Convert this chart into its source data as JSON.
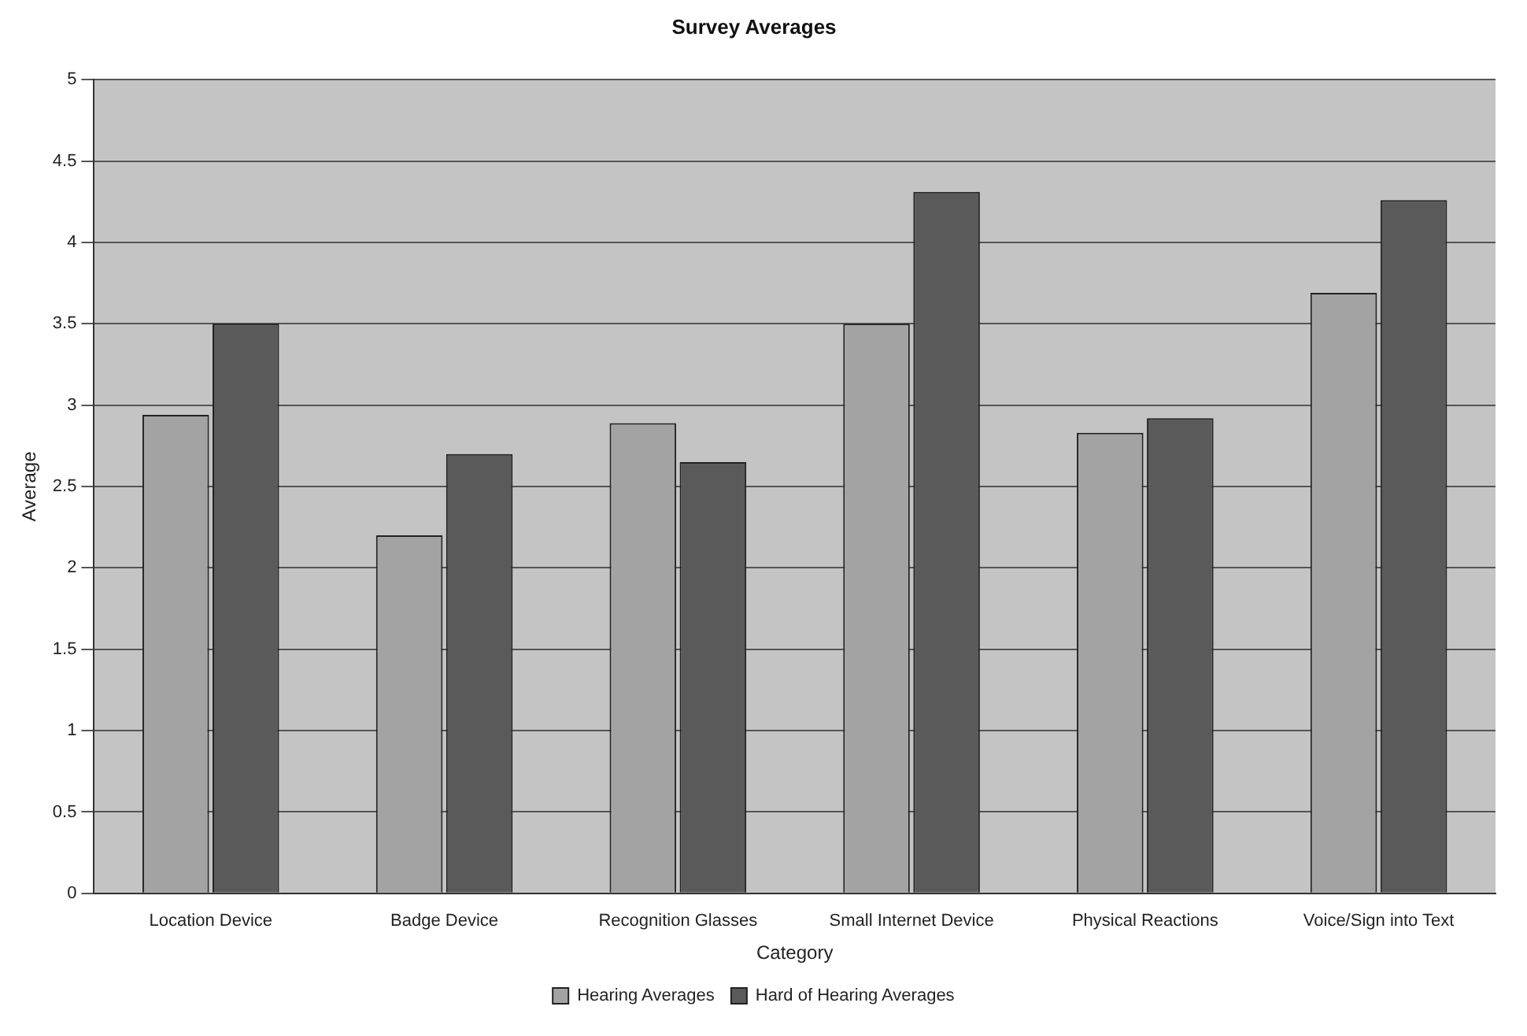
{
  "chart_data": {
    "type": "bar",
    "title": "Survey Averages",
    "xlabel": "Category",
    "ylabel": "Average",
    "categories": [
      "Location Device",
      "Badge Device",
      "Recognition Glasses",
      "Small Internet Device",
      "Physical Reactions",
      "Voice/Sign into Text"
    ],
    "series": [
      {
        "name": "Hearing Averages",
        "color": "#a3a3a3",
        "values": [
          2.94,
          2.2,
          2.89,
          3.5,
          2.83,
          3.69
        ]
      },
      {
        "name": "Hard of Hearing Averages",
        "color": "#5a5a5a",
        "values": [
          3.5,
          2.7,
          2.65,
          4.31,
          2.92,
          4.26
        ]
      }
    ],
    "ylim": [
      0,
      5
    ],
    "yticks": [
      0,
      0.5,
      1,
      1.5,
      2,
      2.5,
      3,
      3.5,
      4,
      4.5,
      5
    ],
    "grid": "y",
    "legend": "bottom"
  }
}
